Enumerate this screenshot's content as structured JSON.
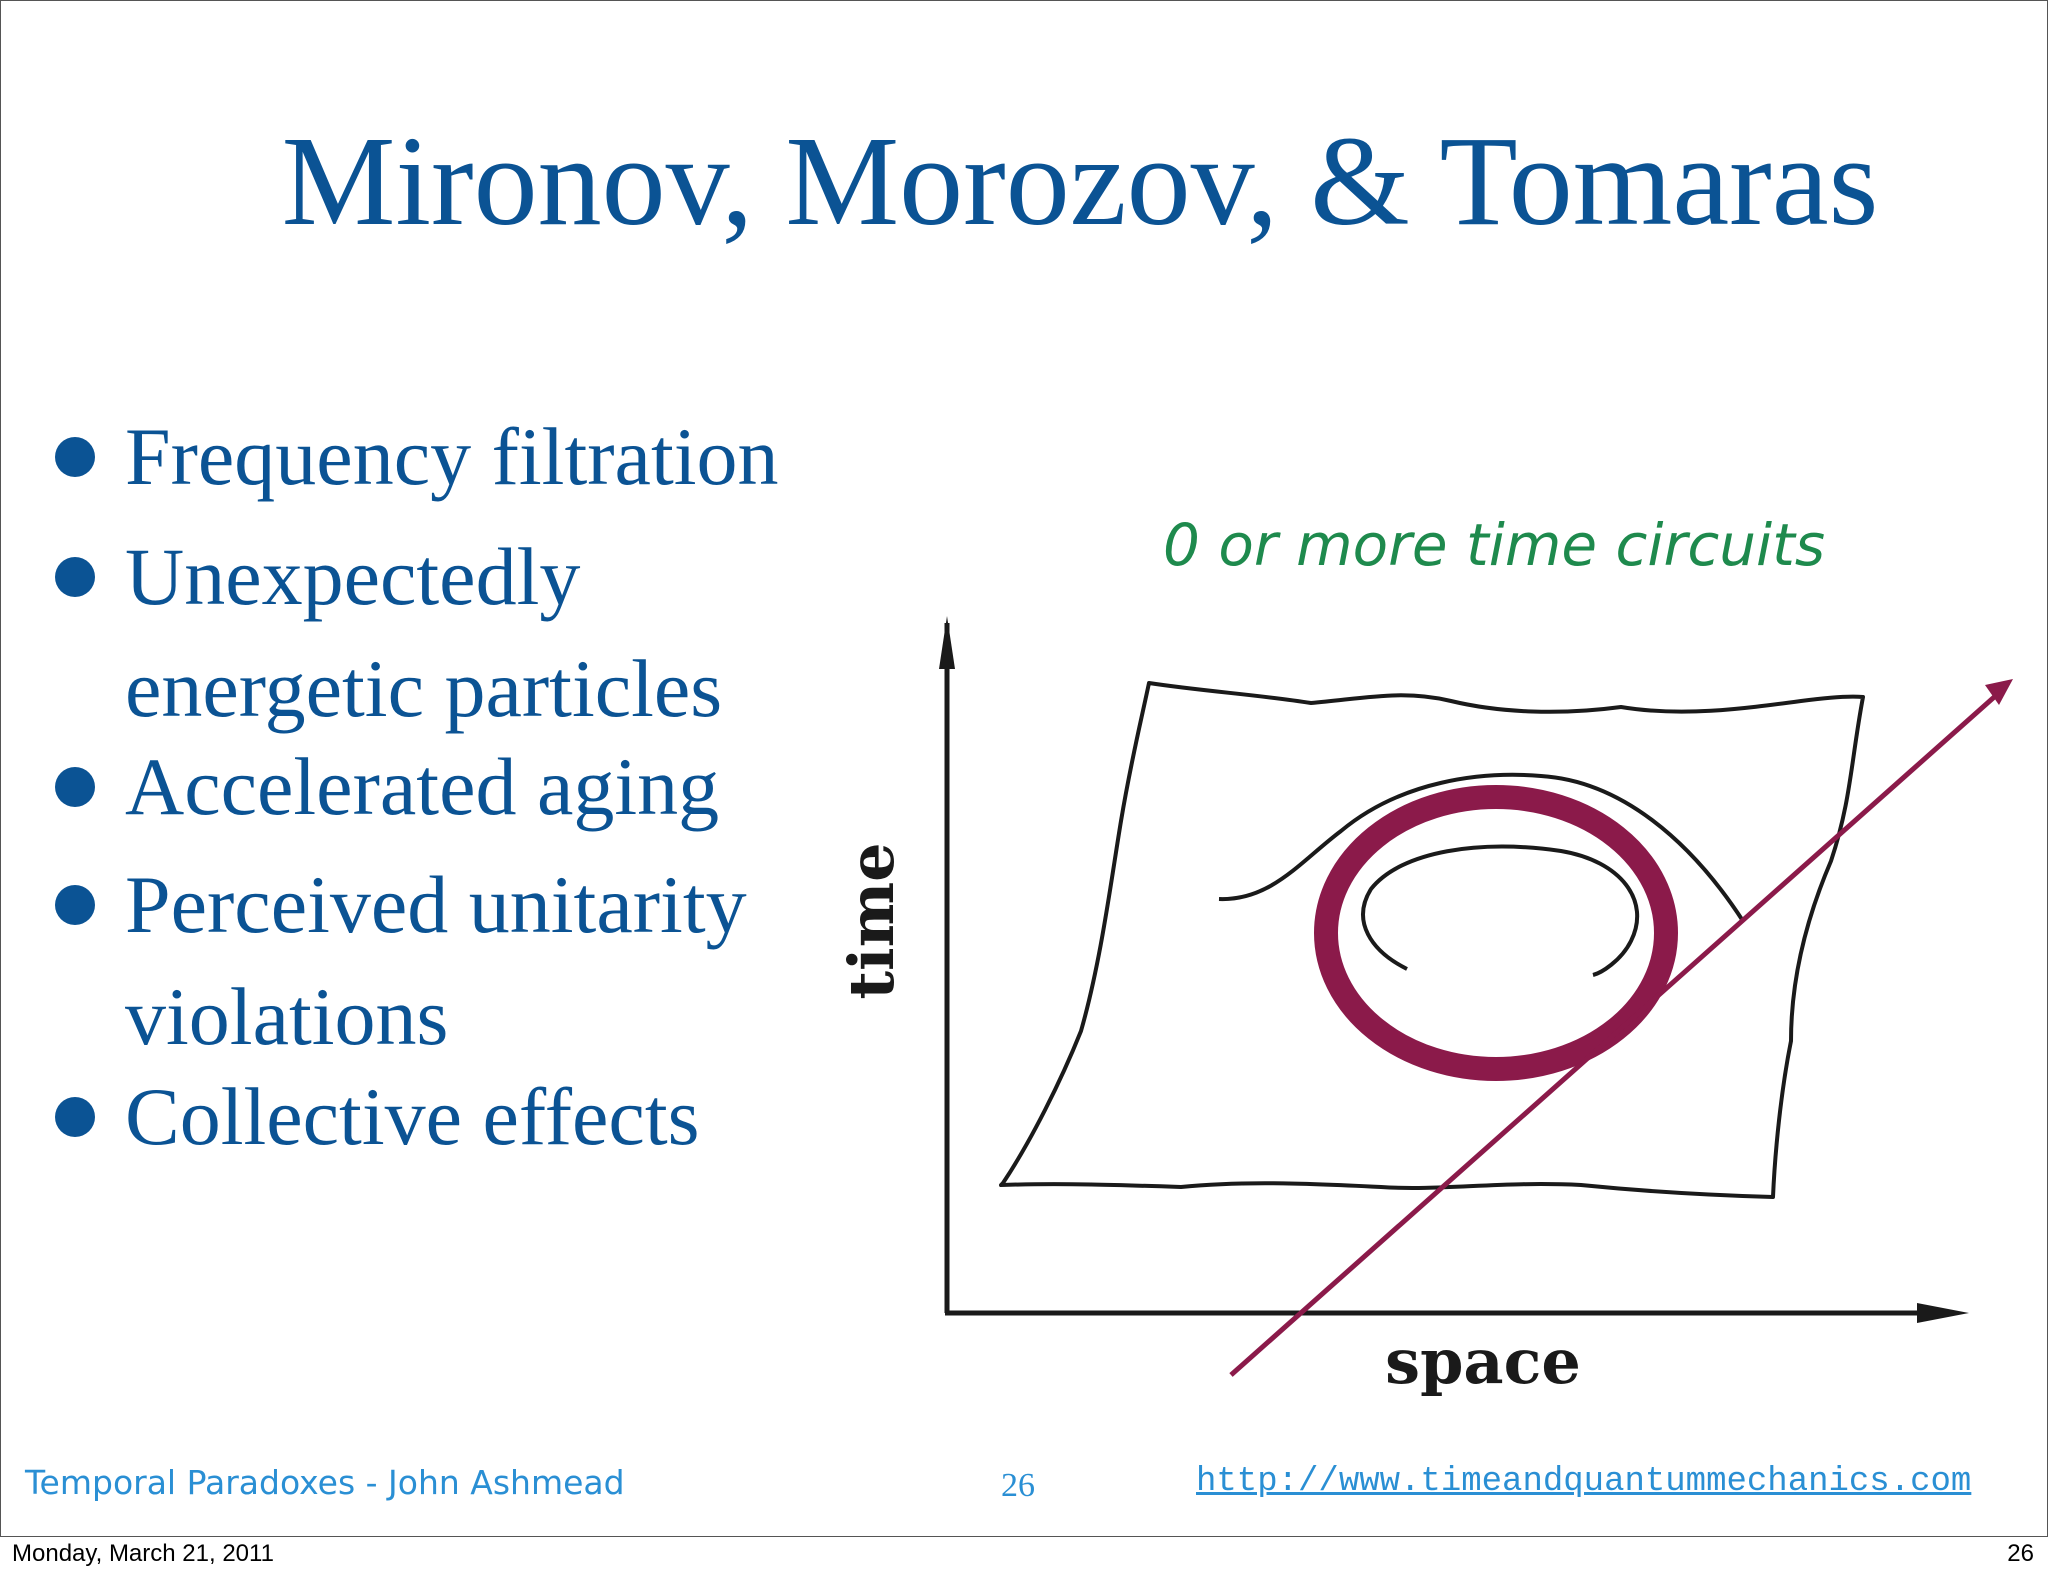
{
  "slide": {
    "title": "Mironov, Morozov, & Tomaras",
    "bullets": [
      {
        "line1": "Frequency filtration",
        "line2": ""
      },
      {
        "line1": "Unexpectedly",
        "line2": "energetic particles"
      },
      {
        "line1": "Accelerated aging",
        "line2": ""
      },
      {
        "line1": "Perceived unitarity",
        "line2": "violations"
      },
      {
        "line1": "Collective effects",
        "line2": ""
      }
    ],
    "diagram": {
      "annotation": "0 or more time circuits",
      "y_axis_label": "time",
      "x_axis_label": "space",
      "colors": {
        "ring": "#8b1a4a",
        "arrow": "#8b1a4a",
        "sketch": "#1a1a1a",
        "annotation": "#1e8a4d"
      }
    },
    "footer": {
      "author": "Temporal Paradoxes - John Ashmead",
      "page": "26",
      "url": "http://www.timeandquantummechanics.com"
    },
    "colors": {
      "title": "#0b5394",
      "footer": "#2a8fd4"
    }
  },
  "print": {
    "date": "Monday, March 21, 2011",
    "page": "26"
  }
}
